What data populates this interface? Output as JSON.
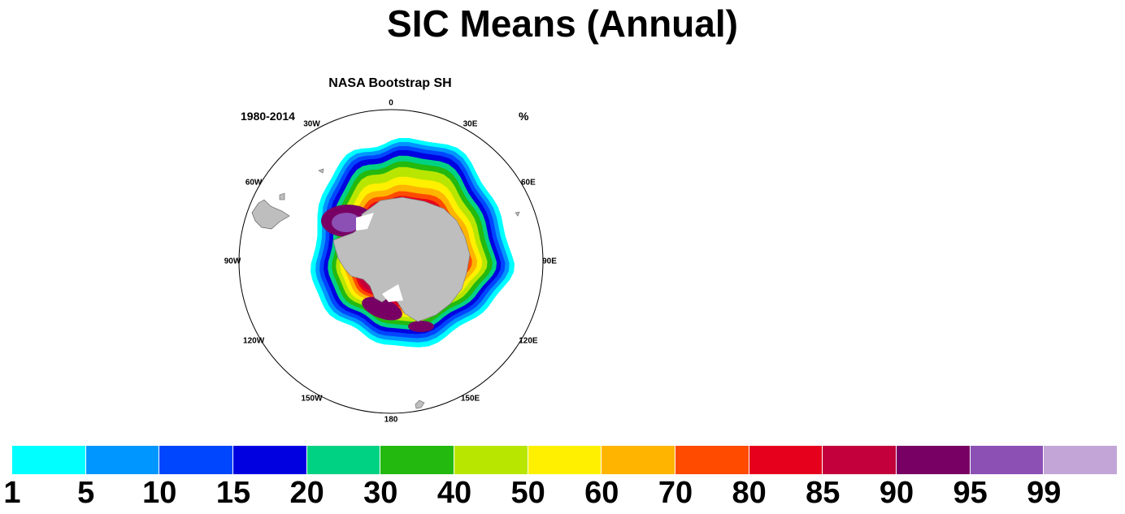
{
  "title": "SIC Means (Annual)",
  "panel": {
    "title": "NASA Bootstrap SH",
    "period": "1980-2014",
    "units": "%",
    "longitude_labels": [
      {
        "name": "lon-0",
        "text": "0",
        "deg": 0
      },
      {
        "name": "lon-30e",
        "text": "30E",
        "deg": 30
      },
      {
        "name": "lon-60e",
        "text": "60E",
        "deg": 60
      },
      {
        "name": "lon-90e",
        "text": "90E",
        "deg": 90
      },
      {
        "name": "lon-120e",
        "text": "120E",
        "deg": 120
      },
      {
        "name": "lon-150e",
        "text": "150E",
        "deg": 150
      },
      {
        "name": "lon-180",
        "text": "180",
        "deg": 180
      },
      {
        "name": "lon-150w",
        "text": "150W",
        "deg": 210
      },
      {
        "name": "lon-120w",
        "text": "120W",
        "deg": 240
      },
      {
        "name": "lon-90w",
        "text": "90W",
        "deg": 270
      },
      {
        "name": "lon-60w",
        "text": "60W",
        "deg": 300
      },
      {
        "name": "lon-30w",
        "text": "30W",
        "deg": 330
      }
    ],
    "land_color": "#bebebe",
    "ocean_color": "#ffffff"
  },
  "colorbar": {
    "colors": [
      "#00ffff",
      "#0096ff",
      "#0046ff",
      "#0000e0",
      "#00d283",
      "#23b90f",
      "#b9e600",
      "#fff000",
      "#ffb400",
      "#ff4b00",
      "#e6001c",
      "#c3003c",
      "#780064",
      "#8c50b4",
      "#c3a5d7"
    ],
    "labels": [
      "1",
      "5",
      "10",
      "15",
      "20",
      "30",
      "40",
      "50",
      "60",
      "70",
      "80",
      "85",
      "90",
      "95",
      "99"
    ]
  }
}
